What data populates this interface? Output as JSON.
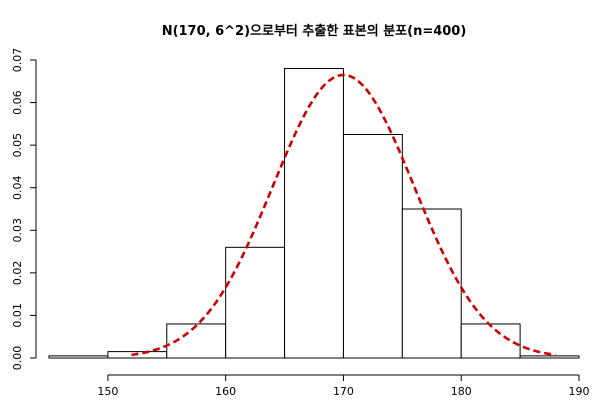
{
  "chart_data": {
    "type": "bar",
    "title": "N(170, 6^2)으로부터 추출한 표본의 분포(n=400)",
    "xlabel": "",
    "ylabel": "",
    "xlim": [
      145,
      190
    ],
    "ylim": [
      0,
      0.07
    ],
    "x_ticks": [
      "150",
      "160",
      "170",
      "180",
      "190"
    ],
    "y_ticks": [
      "0.00",
      "0.01",
      "0.02",
      "0.03",
      "0.04",
      "0.05",
      "0.06",
      "0.07"
    ],
    "bins": [
      {
        "from": 145,
        "to": 150,
        "density": 0.0005
      },
      {
        "from": 150,
        "to": 155,
        "density": 0.0015
      },
      {
        "from": 155,
        "to": 160,
        "density": 0.008
      },
      {
        "from": 160,
        "to": 165,
        "density": 0.026
      },
      {
        "from": 165,
        "to": 170,
        "density": 0.068
      },
      {
        "from": 170,
        "to": 175,
        "density": 0.0525
      },
      {
        "from": 175,
        "to": 180,
        "density": 0.035
      },
      {
        "from": 180,
        "to": 185,
        "density": 0.008
      },
      {
        "from": 185,
        "to": 190,
        "density": 0.0005
      }
    ],
    "curve": {
      "mean": 170,
      "sd": 6,
      "from": 152,
      "to": 188,
      "color": "#cc0000",
      "style": "dashed"
    },
    "grid": false,
    "legend": "none"
  }
}
